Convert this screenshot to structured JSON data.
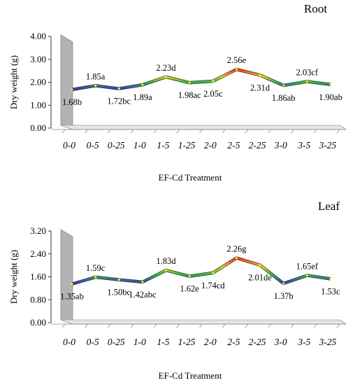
{
  "chart_data": [
    {
      "type": "line",
      "title": "Root",
      "xlabel": "EF-Cd Treatment",
      "ylabel": "Dry weight (g)",
      "ylim": [
        0,
        4
      ],
      "yticks": [
        "0.00",
        "1.00",
        "2.00",
        "3.00",
        "4.00"
      ],
      "yticks_values": [
        0,
        1,
        2,
        3,
        4
      ],
      "categories": [
        "0-0",
        "0-5",
        "0-25",
        "1-0",
        "1-5",
        "1-25",
        "2-0",
        "2-5",
        "2-25",
        "3-0",
        "3-5",
        "3-25"
      ],
      "values": [
        1.68,
        1.85,
        1.72,
        1.89,
        2.23,
        1.98,
        2.05,
        2.56,
        2.31,
        1.86,
        2.03,
        1.9
      ],
      "data_labels": [
        "1.68b",
        "1.85a",
        "1.72bc",
        "1.89a",
        "2.23d",
        "1.98ac",
        "2.05c",
        "2.56e",
        "2.31d",
        "1.86ab",
        "2.03cf",
        "1.90ab"
      ],
      "label_pos": [
        "below",
        "above",
        "below",
        "below",
        "above",
        "below",
        "below",
        "above",
        "below",
        "below",
        "above",
        "below"
      ],
      "grid": false
    },
    {
      "type": "line",
      "title": "Leaf",
      "xlabel": "EF-Cd Treatment",
      "ylabel": "Dry weight (g)",
      "ylim": [
        0,
        3.2
      ],
      "yticks": [
        "0.00",
        "0.80",
        "1.60",
        "2.40",
        "3.20"
      ],
      "yticks_values": [
        0,
        0.8,
        1.6,
        2.4,
        3.2
      ],
      "categories": [
        "0-0",
        "0-5",
        "0-25",
        "1-0",
        "1-5",
        "1-25",
        "2-0",
        "2-5",
        "2-25",
        "3-0",
        "3-5",
        "3-25"
      ],
      "values": [
        1.35,
        1.59,
        1.5,
        1.42,
        1.83,
        1.62,
        1.74,
        2.26,
        2.01,
        1.37,
        1.65,
        1.53
      ],
      "data_labels": [
        "1.35ab",
        "1.59c",
        "1.50bc",
        "1.42abc",
        "1.83d",
        "1.62e",
        "1.74cd",
        "2.26g",
        "2.01de",
        "1.37b",
        "1.65ef",
        "1.53c"
      ],
      "label_pos": [
        "below",
        "above",
        "below",
        "below",
        "above",
        "below",
        "below",
        "above",
        "below",
        "below",
        "above",
        "below"
      ],
      "grid": false
    }
  ]
}
